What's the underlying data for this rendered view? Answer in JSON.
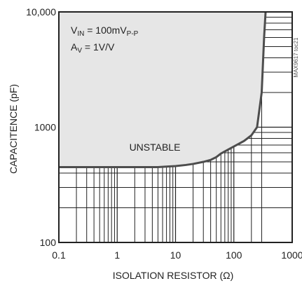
{
  "chart_data": {
    "type": "line",
    "title": "",
    "xlabel": "ISOLATION RESISTOR (Ω)",
    "ylabel": "CAPACITENCE (pF)",
    "xscale": "log",
    "yscale": "log",
    "xlim": [
      0.1,
      1000
    ],
    "ylim": [
      100,
      10000
    ],
    "x_ticks": [
      0.1,
      1,
      10,
      100,
      1000
    ],
    "x_tick_labels": [
      "0.1",
      "1",
      "10",
      "100",
      "1000"
    ],
    "y_ticks": [
      100,
      1000,
      10000
    ],
    "y_tick_labels": [
      "100",
      "1000",
      "10,000"
    ],
    "grid": true,
    "shaded_region_label": "UNSTABLE",
    "series": [
      {
        "x": [
          0.1,
          1,
          5,
          7,
          10,
          15,
          20,
          30,
          40,
          50,
          60,
          80,
          100,
          150,
          200,
          250,
          300,
          330,
          350
        ],
        "y": [
          450,
          450,
          450,
          455,
          460,
          470,
          480,
          500,
          520,
          550,
          590,
          640,
          680,
          760,
          850,
          1000,
          2000,
          6000,
          10000
        ]
      }
    ],
    "annotations": {
      "vin_main": "V",
      "vin_sub": "IN",
      "vin_value": " = 100mV",
      "vin_unit_sub": "P-P",
      "av_main": "A",
      "av_sub": "V",
      "av_value": " = 1V/V",
      "unstable": "UNSTABLE"
    },
    "colors": {
      "unstable_fill": "#e6e6e6",
      "curve": "#4d4d4d",
      "grid": "#222222",
      "frame": "#222222"
    }
  },
  "watermark": "MAX9617 toc21"
}
